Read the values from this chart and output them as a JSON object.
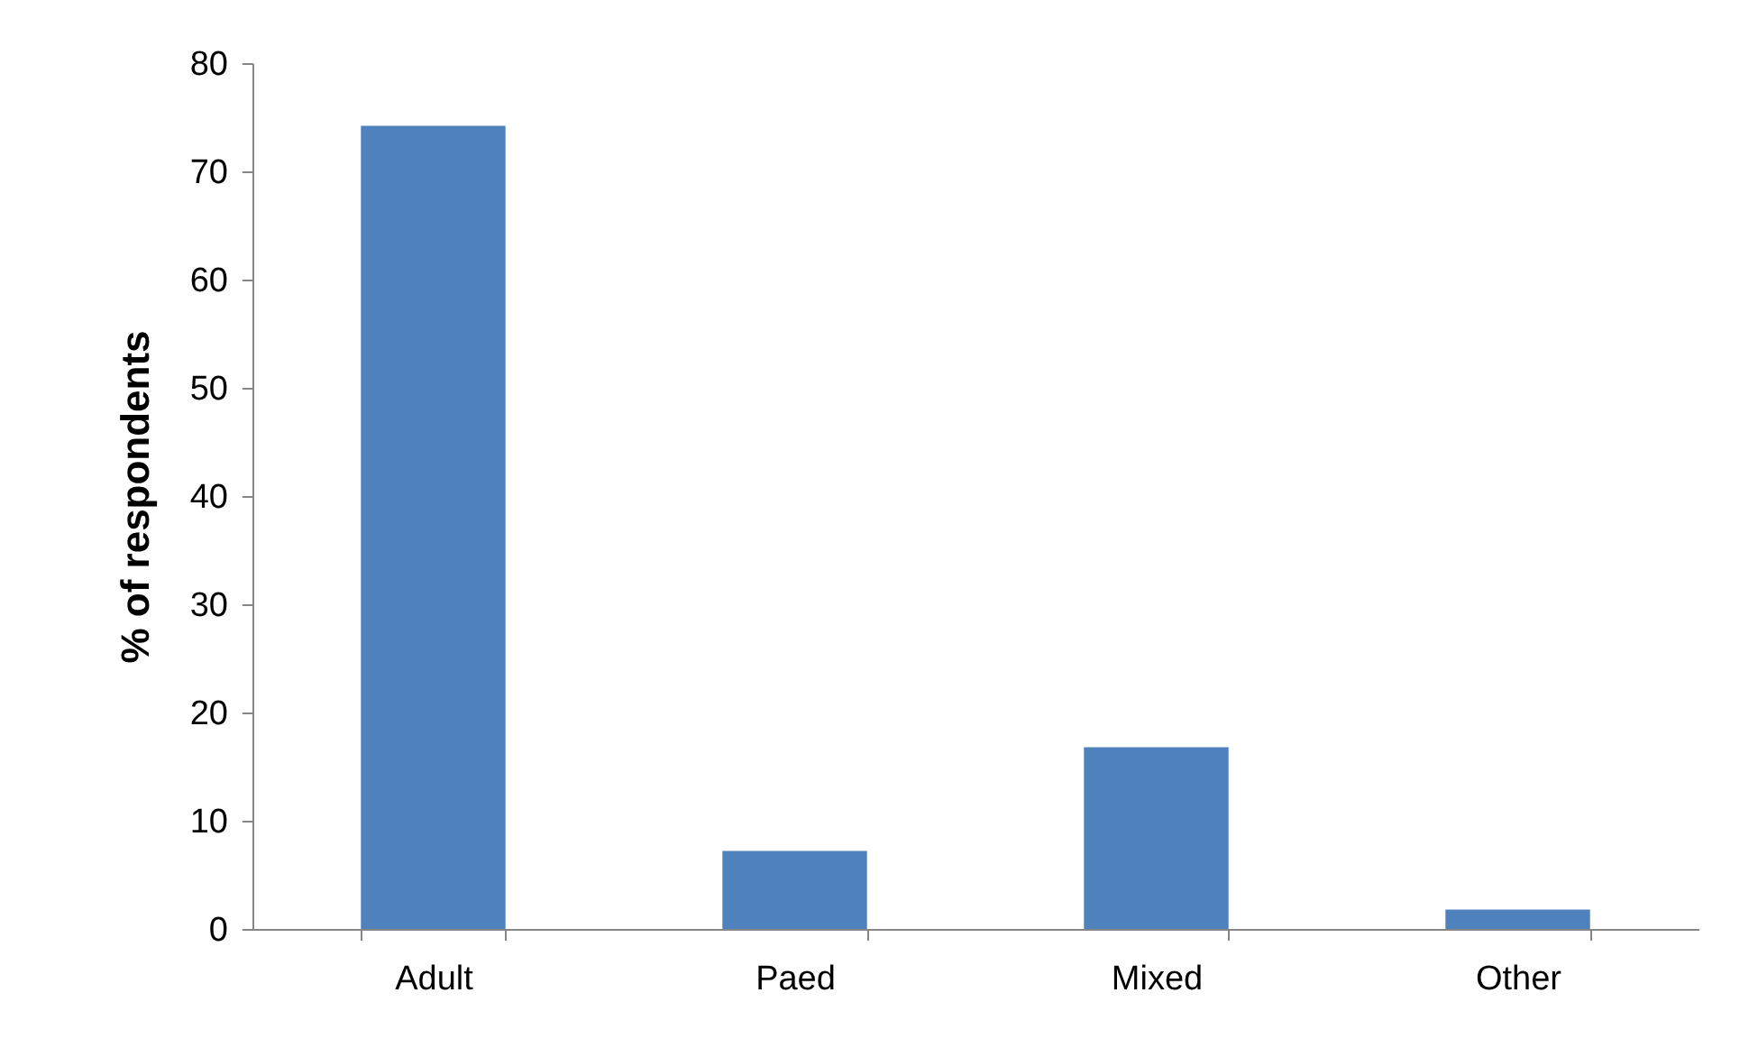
{
  "chart_data": {
    "type": "bar",
    "ylabel": "% of respondents",
    "categories": [
      "Adult",
      "Paed",
      "Mixed",
      "Other"
    ],
    "values": [
      74.2,
      7.2,
      16.8,
      1.8
    ],
    "color": "#4f81bd",
    "ylim": [
      0,
      80
    ],
    "yticks": [
      0,
      10,
      20,
      30,
      40,
      50,
      60,
      70,
      80
    ],
    "grid": false
  }
}
